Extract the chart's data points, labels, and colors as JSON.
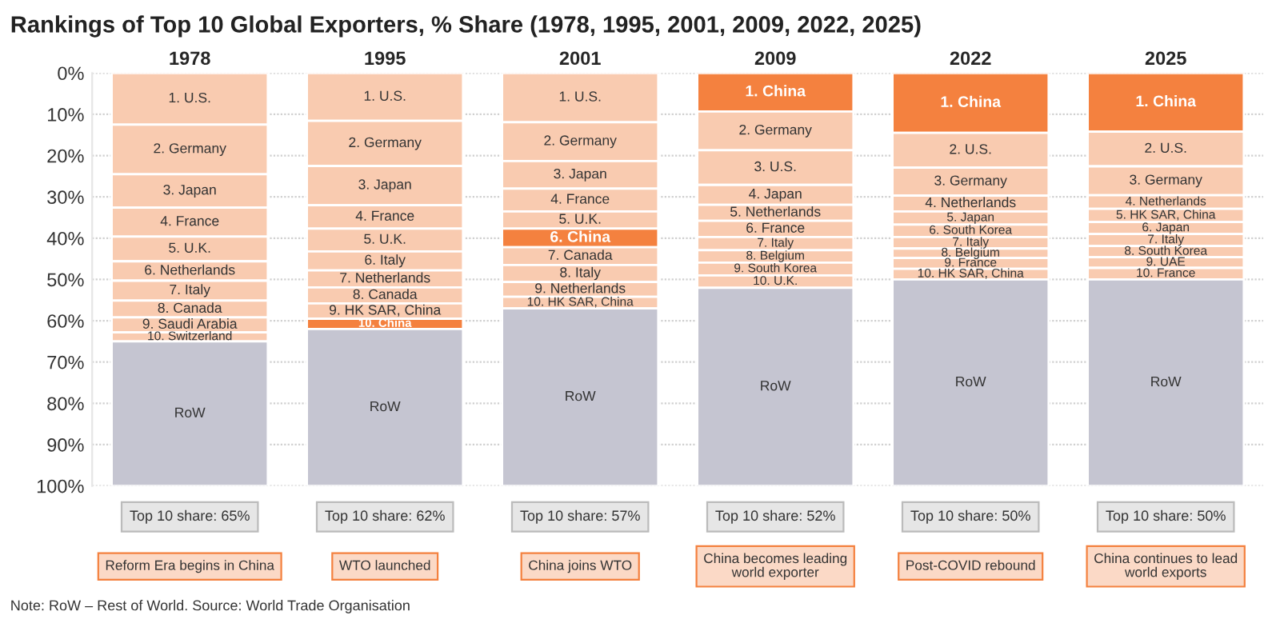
{
  "chart_data": {
    "type": "bar",
    "stacked": true,
    "title": "Rankings of Top 10 Global Exporters, % Share (1978, 1995, 2001, 2009, 2022, 2025)",
    "categories": [
      "1978",
      "1995",
      "2001",
      "2009",
      "2022",
      "2025"
    ],
    "ylim": [
      100,
      0
    ],
    "yticks": [
      {
        "value": 0,
        "label": "0%"
      },
      {
        "value": 10,
        "label": "10%"
      },
      {
        "value": 20,
        "label": "20%"
      },
      {
        "value": 30,
        "label": "30%"
      },
      {
        "value": 40,
        "label": "40%"
      },
      {
        "value": 50,
        "label": "50%"
      },
      {
        "value": 60,
        "label": "60%"
      },
      {
        "value": 70,
        "label": "70%"
      },
      {
        "value": 80,
        "label": "80%"
      },
      {
        "value": 90,
        "label": "90%"
      },
      {
        "value": 100,
        "label": "100%"
      }
    ],
    "grid": "y",
    "series": [
      {
        "values": [
          12.5,
          11.6,
          11.9,
          9.3,
          14.5,
          14.2
        ],
        "colors": [
          "#f9cbb0",
          "#f9cbb0",
          "#f9cbb0",
          "#f4813f",
          "#f4813f",
          "#f4813f"
        ]
      },
      {
        "values": [
          12.0,
          10.9,
          9.4,
          9.4,
          8.4,
          8.4
        ],
        "colors": [
          "#f9cbb0",
          "#f9cbb0",
          "#f9cbb0",
          "#f9cbb0",
          "#f9cbb0",
          "#f9cbb0"
        ]
      },
      {
        "values": [
          8.1,
          9.5,
          6.7,
          8.4,
          6.8,
          7.0
        ],
        "colors": [
          "#f9cbb0",
          "#f9cbb0",
          "#f9cbb0",
          "#f9cbb0",
          "#f9cbb0",
          "#f9cbb0"
        ]
      },
      {
        "values": [
          7.0,
          5.7,
          5.5,
          4.8,
          3.8,
          3.3
        ],
        "colors": [
          "#f9cbb0",
          "#f9cbb0",
          "#f9cbb0",
          "#f9cbb0",
          "#f9cbb0",
          "#f9cbb0"
        ]
      },
      {
        "values": [
          6.0,
          5.5,
          4.2,
          3.9,
          3.2,
          3.2
        ],
        "colors": [
          "#f9cbb0",
          "#f9cbb0",
          "#f9cbb0",
          "#f9cbb0",
          "#f9cbb0",
          "#f9cbb0"
        ]
      },
      {
        "values": [
          4.7,
          4.6,
          4.5,
          3.9,
          3.0,
          2.9
        ],
        "colors": [
          "#f9cbb0",
          "#f9cbb0",
          "#f4813f",
          "#f9cbb0",
          "#f9cbb0",
          "#f9cbb0"
        ]
      },
      {
        "values": [
          4.8,
          4.1,
          4.3,
          3.2,
          2.8,
          2.9
        ],
        "colors": [
          "#f9cbb0",
          "#f9cbb0",
          "#f9cbb0",
          "#f9cbb0",
          "#f9cbb0",
          "#f9cbb0"
        ]
      },
      {
        "values": [
          4.1,
          3.9,
          4.1,
          3.0,
          2.3,
          2.7
        ],
        "colors": [
          "#f9cbb0",
          "#f9cbb0",
          "#f9cbb0",
          "#f9cbb0",
          "#f9cbb0",
          "#f9cbb0"
        ]
      },
      {
        "values": [
          3.6,
          3.7,
          3.6,
          3.1,
          2.6,
          2.6
        ],
        "colors": [
          "#f9cbb0",
          "#f9cbb0",
          "#f9cbb0",
          "#f9cbb0",
          "#f9cbb0",
          "#f9cbb0"
        ]
      },
      {
        "values": [
          2.2,
          2.5,
          2.8,
          3.0,
          2.6,
          2.8
        ],
        "colors": [
          "#f9cbb0",
          "#f4813f",
          "#f9cbb0",
          "#f9cbb0",
          "#f9cbb0",
          "#f9cbb0"
        ]
      },
      {
        "values": [
          35,
          38,
          43,
          48,
          50,
          50
        ],
        "colors": [
          "#c5c5d1",
          "#c5c5d1",
          "#c5c5d1",
          "#c5c5d1",
          "#c5c5d1",
          "#c5c5d1"
        ]
      }
    ],
    "annotations": [
      {
        "text": "1. U.S.",
        "x": "1978",
        "y": 12.5
      },
      {
        "text": "2. Germany",
        "x": "1978",
        "y": 24.5
      },
      {
        "text": "3. Japan",
        "x": "1978",
        "y": 32.6
      },
      {
        "text": "4. France",
        "x": "1978",
        "y": 39.6
      },
      {
        "text": "5. U.K.",
        "x": "1978",
        "y": 45.6
      },
      {
        "text": "6. Netherlands",
        "x": "1978",
        "y": 50.3
      },
      {
        "text": "7. Italy",
        "x": "1978",
        "y": 55.1
      },
      {
        "text": "8. Canada",
        "x": "1978",
        "y": 59.2
      },
      {
        "text": "9. Saudi Arabia",
        "x": "1978",
        "y": 62.8
      },
      {
        "text": "10. Switzerland",
        "x": "1978",
        "y": 65.0
      },
      {
        "text": "1. U.S.",
        "x": "1995",
        "y": 11.6
      },
      {
        "text": "2. Germany",
        "x": "1995",
        "y": 22.5
      },
      {
        "text": "3. Japan",
        "x": "1995",
        "y": 32.0
      },
      {
        "text": "4. France",
        "x": "1995",
        "y": 37.7
      },
      {
        "text": "5. U.K.",
        "x": "1995",
        "y": 43.2
      },
      {
        "text": "6. Italy",
        "x": "1995",
        "y": 47.8
      },
      {
        "text": "7. Netherlands",
        "x": "1995",
        "y": 51.9
      },
      {
        "text": "8. Canada",
        "x": "1995",
        "y": 55.8
      },
      {
        "text": "9. HK SAR, China",
        "x": "1995",
        "y": 59.5
      },
      {
        "text": "10. China",
        "x": "1995",
        "y": 62.0
      },
      {
        "text": "1. U.S.",
        "x": "2001",
        "y": 11.9
      },
      {
        "text": "2. Germany",
        "x": "2001",
        "y": 21.3
      },
      {
        "text": "3. Japan",
        "x": "2001",
        "y": 28.0
      },
      {
        "text": "4. France",
        "x": "2001",
        "y": 33.5
      },
      {
        "text": "5. U.K.",
        "x": "2001",
        "y": 37.7
      },
      {
        "text": "6. China",
        "x": "2001",
        "y": 42.2
      },
      {
        "text": "7. Canada",
        "x": "2001",
        "y": 46.5
      },
      {
        "text": "8. Italy",
        "x": "2001",
        "y": 50.6
      },
      {
        "text": "9. Netherlands",
        "x": "2001",
        "y": 54.2
      },
      {
        "text": "10. HK SAR, China",
        "x": "2001",
        "y": 57.0
      },
      {
        "text": "1. China",
        "x": "2009",
        "y": 9.3
      },
      {
        "text": "2. Germany",
        "x": "2009",
        "y": 18.7
      },
      {
        "text": "3. U.S.",
        "x": "2009",
        "y": 27.1
      },
      {
        "text": "4. Japan",
        "x": "2009",
        "y": 31.9
      },
      {
        "text": "5. Netherlands",
        "x": "2009",
        "y": 35.8
      },
      {
        "text": "6. France",
        "x": "2009",
        "y": 39.7
      },
      {
        "text": "7. Italy",
        "x": "2009",
        "y": 42.9
      },
      {
        "text": "8. Belgium",
        "x": "2009",
        "y": 45.9
      },
      {
        "text": "9. South Korea",
        "x": "2009",
        "y": 49.0
      },
      {
        "text": "10. U.K.",
        "x": "2009",
        "y": 52.0
      },
      {
        "text": "1. China",
        "x": "2022",
        "y": 14.5
      },
      {
        "text": "2. U.S.",
        "x": "2022",
        "y": 22.9
      },
      {
        "text": "3. Germany",
        "x": "2022",
        "y": 29.7
      },
      {
        "text": "4. Netherlands",
        "x": "2022",
        "y": 33.5
      },
      {
        "text": "5. Japan",
        "x": "2022",
        "y": 36.7
      },
      {
        "text": "6. South Korea",
        "x": "2022",
        "y": 39.7
      },
      {
        "text": "7. Italy",
        "x": "2022",
        "y": 42.5
      },
      {
        "text": "8. Belgium",
        "x": "2022",
        "y": 44.8
      },
      {
        "text": "9. France",
        "x": "2022",
        "y": 47.4
      },
      {
        "text": "10. HK SAR, China",
        "x": "2022",
        "y": 50.0
      },
      {
        "text": "1. China",
        "x": "2025",
        "y": 14.2
      },
      {
        "text": "2. U.S.",
        "x": "2025",
        "y": 22.6
      },
      {
        "text": "3. Germany",
        "x": "2025",
        "y": 29.6
      },
      {
        "text": "4. Netherlands",
        "x": "2025",
        "y": 32.9
      },
      {
        "text": "5. HK SAR, China",
        "x": "2025",
        "y": 36.1
      },
      {
        "text": "6. Japan",
        "x": "2025",
        "y": 39.0
      },
      {
        "text": "7. Italy",
        "x": "2025",
        "y": 41.9
      },
      {
        "text": "8. South Korea",
        "x": "2025",
        "y": 44.6
      },
      {
        "text": "9. UAE",
        "x": "2025",
        "y": 47.2
      },
      {
        "text": "10. France",
        "x": "2025",
        "y": 50.0
      },
      "RoW",
      "RoW",
      "RoW",
      "RoW",
      "RoW",
      "RoW",
      "Top 10 share: 65%",
      "Top 10 share: 62%",
      "Top 10 share: 57%",
      "Top 10 share: 52%",
      "Top 10 share: 50%",
      "Top 10 share: 50%",
      "Reform Era begins in China",
      "WTO launched",
      "China joins WTO",
      "China becomes leading\nworld exporter",
      "Post-COVID rebound",
      "China continues to lead\nworld exports",
      "Note: RoW – Rest of World. Source: World Trade Organisation"
    ]
  }
}
